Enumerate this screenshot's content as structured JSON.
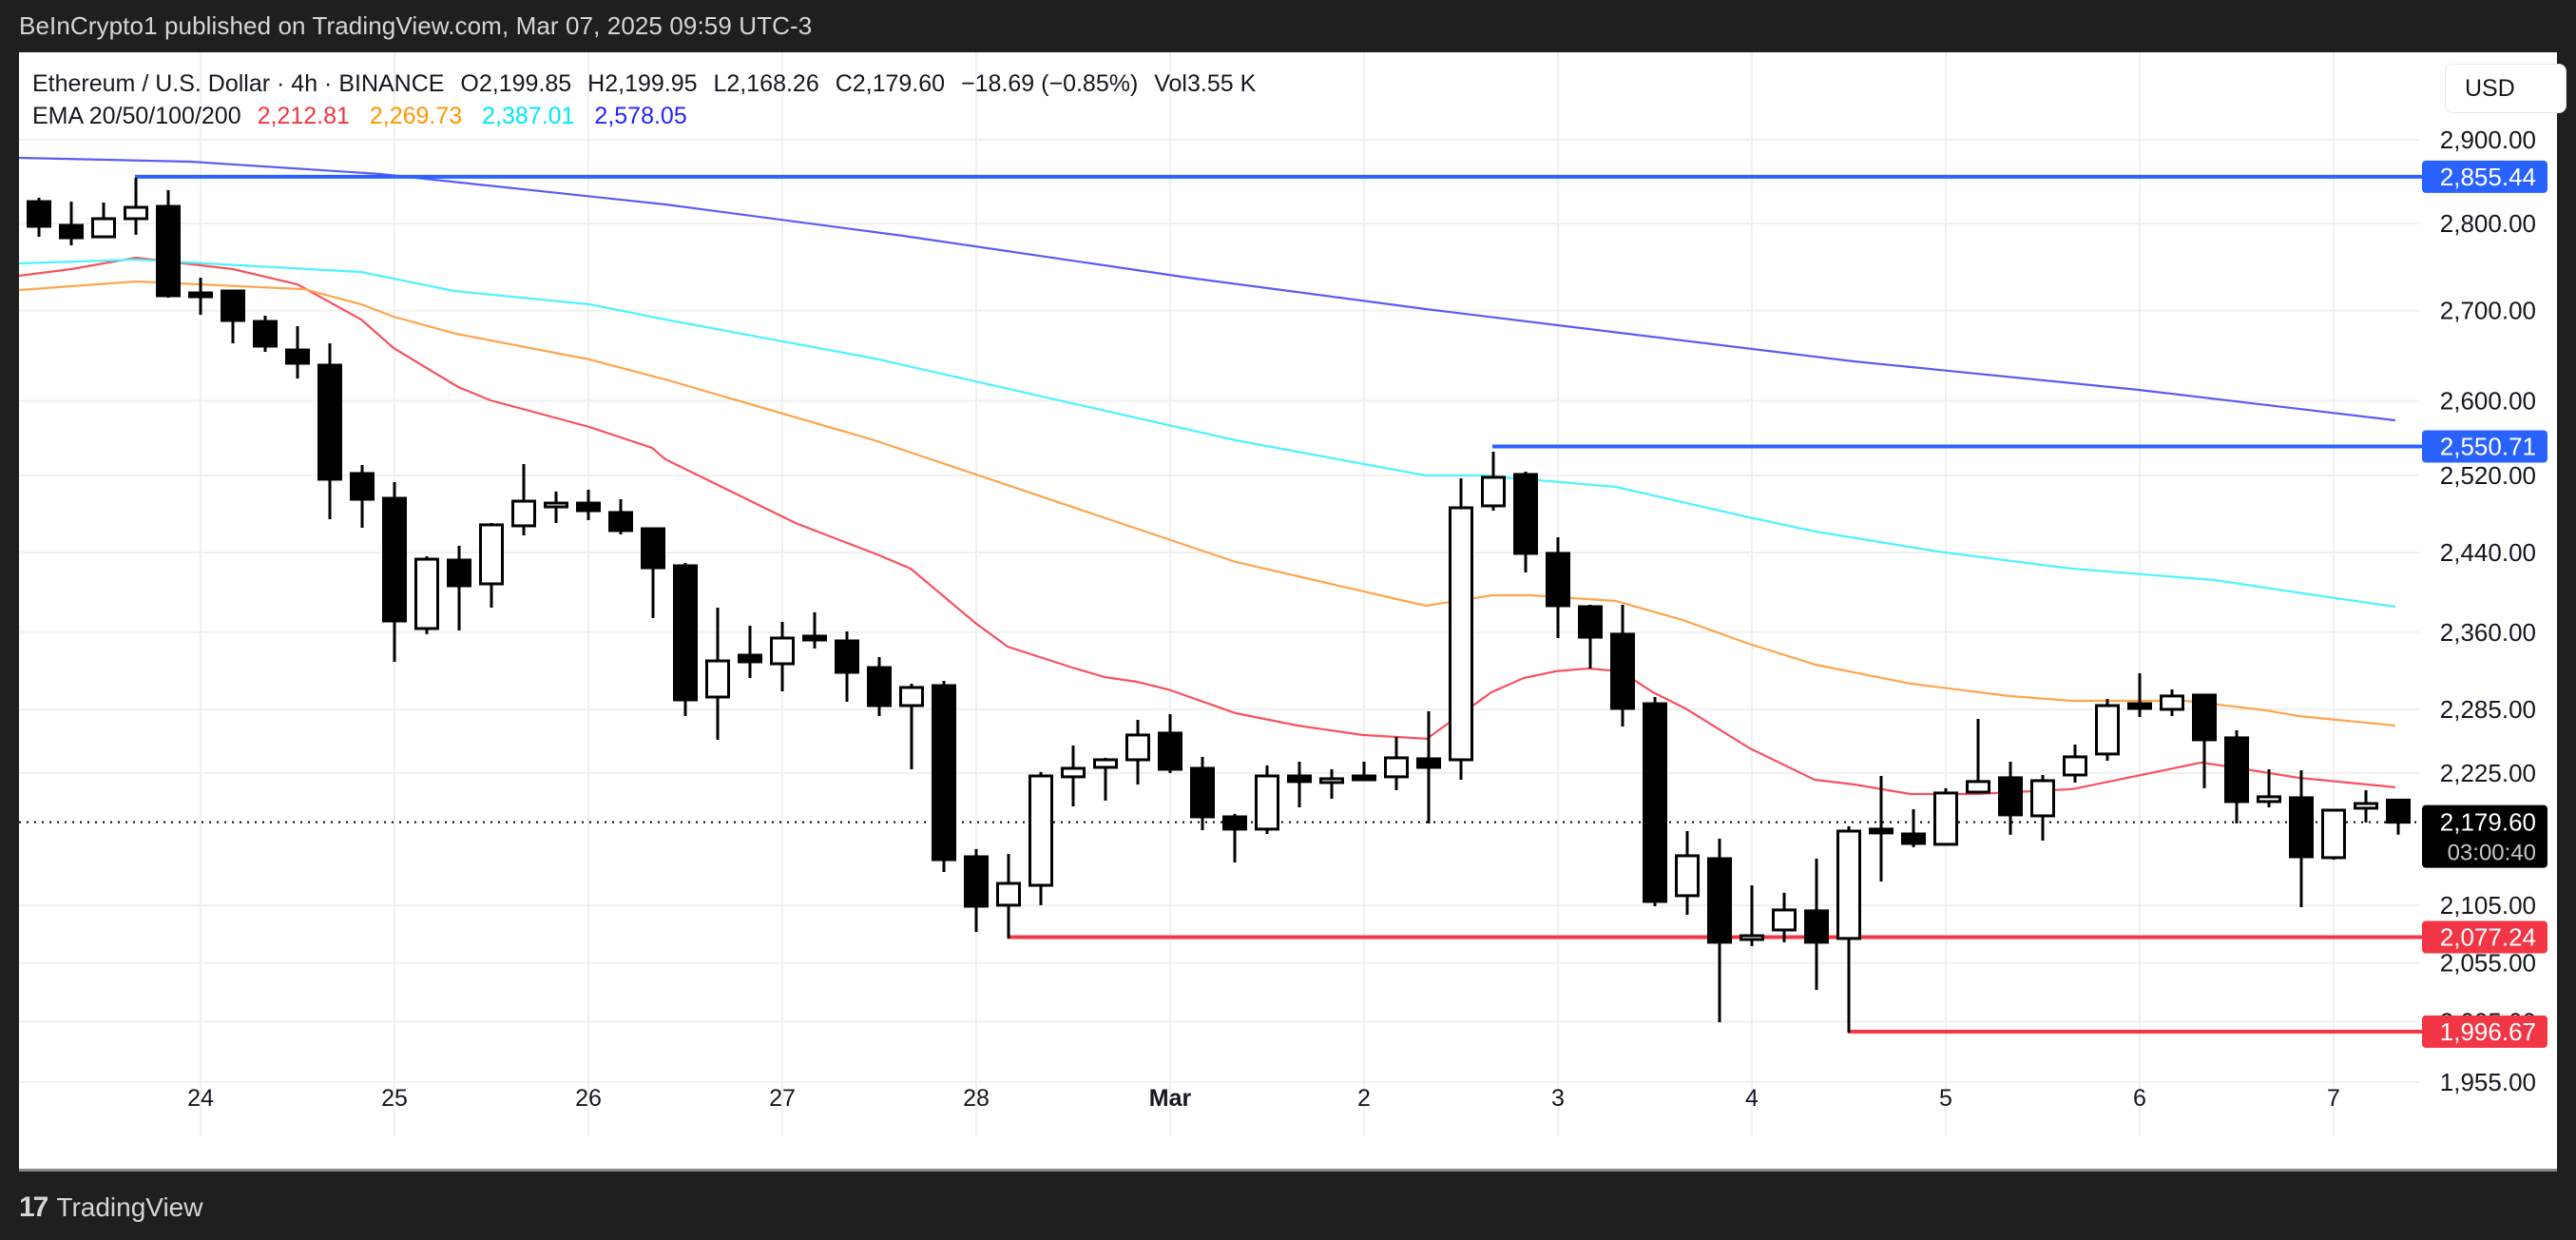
{
  "header": {
    "published": "BeInCrypto1 published on TradingView.com, Mar 07, 2025 09:59 UTC-3"
  },
  "legend": {
    "symbol": "Ethereum / U.S. Dollar · 4h · BINANCE",
    "open_label": "O",
    "open": "2,199.85",
    "high_label": "H",
    "high": "2,199.95",
    "low_label": "L",
    "low": "2,168.26",
    "close_label": "C",
    "close": "2,179.60",
    "change": "−18.69 (−0.85%)",
    "volume_label": "Vol",
    "volume": "3.55 K",
    "ema_label": "EMA 20/50/100/200",
    "ema20": "2,212.81",
    "ema50": "2,269.73",
    "ema100": "2,387.01",
    "ema200": "2,578.05"
  },
  "currency_button": "USD",
  "footer": {
    "brand": "TradingView",
    "logo": "17"
  },
  "colors": {
    "ema20": "#f23645",
    "ema50": "#ff9800",
    "ema100": "#00e5ff",
    "ema200": "#2323ff",
    "ema20_line": "#f7525f",
    "ema50_line": "#ffa54d",
    "ema100_line": "#4df3ff",
    "ema200_line": "#5b5bf5",
    "resistance": "#2962ff",
    "support": "#f23645",
    "candle": "#000000",
    "grid": "#f0f0f0"
  },
  "price_label": {
    "value": "2,179.60",
    "countdown": "03:00:40"
  },
  "chart_data": {
    "type": "candlestick",
    "title": "Ethereum / U.S. Dollar · 4h · BINANCE",
    "scale": "log",
    "ylim": [
      1930,
      2935
    ],
    "y_ticks": [
      2900,
      2800,
      2700,
      2600,
      2520,
      2440,
      2360,
      2285,
      2225,
      2105,
      2055,
      2005,
      1955
    ],
    "y_tick_labels": [
      "2,900.00",
      "2,800.00",
      "2,700.00",
      "2,600.00",
      "2,520.00",
      "2,440.00",
      "2,360.00",
      "2,285.00",
      "2,225.00",
      "2,105.00",
      "2,055.00",
      "2,005.00",
      "1,955.00"
    ],
    "x_ticks": [
      {
        "label": "24",
        "index": 5
      },
      {
        "label": "25",
        "index": 11
      },
      {
        "label": "26",
        "index": 17
      },
      {
        "label": "27",
        "index": 23
      },
      {
        "label": "28",
        "index": 29
      },
      {
        "label": "Mar",
        "index": 35
      },
      {
        "label": "2",
        "index": 41
      },
      {
        "label": "3",
        "index": 47
      },
      {
        "label": "4",
        "index": 53
      },
      {
        "label": "5",
        "index": 59
      },
      {
        "label": "6",
        "index": 65
      },
      {
        "label": "7",
        "index": 71
      }
    ],
    "candles": [
      [
        2825.9,
        2830.5,
        2784.6,
        2796.9
      ],
      [
        2798.0,
        2825.9,
        2774.7,
        2783.5
      ],
      [
        2784.6,
        2824.8,
        2784.6,
        2805.8
      ],
      [
        2805.8,
        2854.2,
        2786.9,
        2819.2
      ],
      [
        2820.3,
        2839.5,
        2714.6,
        2716.8
      ],
      [
        2720.0,
        2737.4,
        2695.2,
        2719.0
      ],
      [
        2722.2,
        2723.3,
        2663.2,
        2688.8
      ],
      [
        2687.7,
        2694.2,
        2653.7,
        2660.1
      ],
      [
        2655.8,
        2682.4,
        2624.3,
        2641.1
      ],
      [
        2639.0,
        2663.2,
        2474.3,
        2516.0
      ],
      [
        2522.0,
        2531.0,
        2465.4,
        2495.0
      ],
      [
        2496.0,
        2513.0,
        2330.9,
        2371.1
      ],
      [
        2363.6,
        2436.2,
        2358.0,
        2433.2
      ],
      [
        2432.3,
        2446.8,
        2361.7,
        2406.3
      ],
      [
        2408.2,
        2470.3,
        2384.4,
        2468.4
      ],
      [
        2467.4,
        2532.0,
        2457.6,
        2493.0
      ],
      [
        2490.1,
        2503.0,
        2470.3,
        2491.0
      ],
      [
        2491.0,
        2505.0,
        2473.3,
        2483.1
      ],
      [
        2481.2,
        2495.0,
        2458.6,
        2462.5
      ],
      [
        2464.4,
        2465.4,
        2374.0,
        2424.5
      ],
      [
        2426.5,
        2429.4,
        2278.6,
        2294.1
      ],
      [
        2296.8,
        2384.4,
        2256.1,
        2331.8
      ],
      [
        2337.4,
        2366.4,
        2315.2,
        2330.9
      ],
      [
        2329.0,
        2370.2,
        2302.3,
        2354.2
      ],
      [
        2356.1,
        2379.7,
        2343.9,
        2352.3
      ],
      [
        2351.4,
        2360.8,
        2292.3,
        2320.7
      ],
      [
        2325.3,
        2335.5,
        2278.6,
        2288.6
      ],
      [
        2288.6,
        2309.7,
        2228.4,
        2306.0
      ],
      [
        2307.8,
        2312.4,
        2134.7,
        2145.7
      ],
      [
        2148.3,
        2155.2,
        2081.8,
        2104.3
      ],
      [
        2105.2,
        2150.9,
        2076.1,
        2124.5
      ],
      [
        2122.8,
        2225.8,
        2105.2,
        2222.2
      ],
      [
        2221.4,
        2250.7,
        2194.1,
        2229.3
      ],
      [
        2230.2,
        2239.1,
        2199.4,
        2237.3
      ],
      [
        2237.3,
        2275.0,
        2214.3,
        2260.6
      ],
      [
        2262.4,
        2280.4,
        2224.9,
        2228.4
      ],
      [
        2229.3,
        2240.0,
        2172.4,
        2184.5
      ],
      [
        2184.5,
        2187.2,
        2143.2,
        2173.3
      ],
      [
        2173.3,
        2232.0,
        2168.9,
        2222.2
      ],
      [
        2222.2,
        2235.5,
        2193.2,
        2217.0
      ],
      [
        2217.0,
        2228.4,
        2201.1,
        2219.6
      ],
      [
        2222.2,
        2235.5,
        2219.6,
        2219.6
      ],
      [
        2221.4,
        2258.8,
        2209.0,
        2239.1
      ],
      [
        2238.2,
        2283.2,
        2178.5,
        2230.2
      ],
      [
        2237.3,
        2517.0,
        2218.7,
        2486.1
      ],
      [
        2488.1,
        2545.1,
        2483.1,
        2518.0
      ],
      [
        2521.0,
        2524.0,
        2419.7,
        2439.1
      ],
      [
        2439.1,
        2455.6,
        2354.2,
        2386.3
      ],
      [
        2385.3,
        2387.2,
        2324.4,
        2355.1
      ],
      [
        2358.0,
        2387.2,
        2268.7,
        2285.9
      ],
      [
        2290.4,
        2296.8,
        2104.3,
        2108.5
      ],
      [
        2113.6,
        2171.5,
        2096.8,
        2149.2
      ],
      [
        2146.6,
        2164.6,
        2004.6,
        2072.8
      ],
      [
        2075.2,
        2122.8,
        2069.5,
        2078.5
      ],
      [
        2083.5,
        2116.1,
        2072.8,
        2101.0
      ],
      [
        2100.2,
        2146.6,
        2031.9,
        2072.8
      ],
      [
        2076.1,
        2175.9,
        1995.9,
        2171.5
      ],
      [
        2173.3,
        2222.2,
        2126.2,
        2172.4
      ],
      [
        2168.9,
        2191.5,
        2156.9,
        2160.3
      ],
      [
        2159.5,
        2210.8,
        2158.6,
        2206.4
      ],
      [
        2207.2,
        2275.9,
        2207.2,
        2217.0
      ],
      [
        2220.5,
        2235.5,
        2168.1,
        2186.3
      ],
      [
        2185.4,
        2223.1,
        2162.9,
        2217.8
      ],
      [
        2223.1,
        2251.6,
        2216.1,
        2240.0
      ],
      [
        2242.7,
        2295.0,
        2236.4,
        2288.6
      ],
      [
        2290.4,
        2319.8,
        2277.7,
        2285.9
      ],
      [
        2285.0,
        2304.1,
        2278.6,
        2297.8
      ],
      [
        2298.7,
        2298.7,
        2210.8,
        2256.1
      ],
      [
        2257.9,
        2265.1,
        2178.5,
        2198.5
      ],
      [
        2198.5,
        2228.4,
        2193.2,
        2202.9
      ],
      [
        2202.0,
        2227.5,
        2103.5,
        2148.3
      ],
      [
        2147.5,
        2191.5,
        2145.7,
        2190.6
      ],
      [
        2192.4,
        2209.0,
        2179.3,
        2196.7
      ],
      [
        2199.85,
        2199.95,
        2168.26,
        2179.6
      ]
    ],
    "series": [
      {
        "name": "EMA 20",
        "color_key": "ema20_line",
        "points": [
          [
            -0.62,
            2739.6
          ],
          [
            1.0,
            2747.2
          ],
          [
            3.0,
            2760.4
          ],
          [
            6.0,
            2747.2
          ],
          [
            8.0,
            2729.8
          ],
          [
            9.97,
            2689.9
          ],
          [
            10.97,
            2658.0
          ],
          [
            12.97,
            2615.0
          ],
          [
            13.97,
            2600.4
          ],
          [
            17.03,
            2571.6
          ],
          [
            18.97,
            2549.2
          ],
          [
            19.38,
            2537.1
          ],
          [
            23.41,
            2470.3
          ],
          [
            26.0,
            2437.1
          ],
          [
            26.97,
            2423.6
          ],
          [
            28.97,
            2369.2
          ],
          [
            29.97,
            2345.8
          ],
          [
            31.97,
            2325.3
          ],
          [
            32.97,
            2316.1
          ],
          [
            33.97,
            2311.5
          ],
          [
            34.94,
            2304.1
          ],
          [
            37.03,
            2281.3
          ],
          [
            38.94,
            2269.6
          ],
          [
            40.94,
            2260.6
          ],
          [
            42.94,
            2257.0
          ],
          [
            44.94,
            2301.4
          ],
          [
            45.94,
            2315.2
          ],
          [
            46.94,
            2321.7
          ],
          [
            47.94,
            2324.4
          ],
          [
            48.94,
            2321.7
          ],
          [
            49.94,
            2301.4
          ],
          [
            50.94,
            2285.9
          ],
          [
            52.94,
            2248.0
          ],
          [
            54.94,
            2218.7
          ],
          [
            56.15,
            2214.3
          ],
          [
            57.91,
            2205.5
          ],
          [
            59.94,
            2205.5
          ],
          [
            62.91,
            2209.9
          ],
          [
            66.91,
            2234.7
          ],
          [
            67.91,
            2230.2
          ],
          [
            69.91,
            2220.5
          ],
          [
            72.91,
            2211.7
          ]
        ]
      },
      {
        "name": "EMA 50",
        "color_key": "ema50_line",
        "points": [
          [
            -0.62,
            2723.3
          ],
          [
            3.0,
            2733.0
          ],
          [
            8.21,
            2724.3
          ],
          [
            9.97,
            2707.1
          ],
          [
            10.97,
            2693.1
          ],
          [
            12.91,
            2673.9
          ],
          [
            17.03,
            2645.3
          ],
          [
            19.38,
            2623.3
          ],
          [
            25.85,
            2557.3
          ],
          [
            37.03,
            2430.3
          ],
          [
            42.91,
            2386.3
          ],
          [
            44.97,
            2396.7
          ],
          [
            46.15,
            2396.7
          ],
          [
            48.79,
            2391.0
          ],
          [
            50.85,
            2372.1
          ],
          [
            52.91,
            2348.6
          ],
          [
            54.97,
            2328.1
          ],
          [
            57.91,
            2309.7
          ],
          [
            60.94,
            2297.8
          ],
          [
            62.91,
            2293.2
          ],
          [
            66.44,
            2293.2
          ],
          [
            68.91,
            2284.1
          ],
          [
            69.91,
            2278.6
          ],
          [
            72.91,
            2269.6
          ]
        ]
      },
      {
        "name": "EMA 100",
        "color_key": "ema100_line",
        "points": [
          [
            -0.62,
            2753.8
          ],
          [
            3.0,
            2758.2
          ],
          [
            9.97,
            2744.0
          ],
          [
            12.85,
            2722.2
          ],
          [
            17.03,
            2707.1
          ],
          [
            19.38,
            2689.9
          ],
          [
            25.85,
            2646.4
          ],
          [
            37.03,
            2557.3
          ],
          [
            42.91,
            2520.0
          ],
          [
            44.68,
            2520.0
          ],
          [
            48.79,
            2508.0
          ],
          [
            52.91,
            2476.2
          ],
          [
            54.97,
            2461.5
          ],
          [
            58.94,
            2440.1
          ],
          [
            62.91,
            2423.6
          ],
          [
            67.32,
            2412.0
          ],
          [
            70.85,
            2394.8
          ],
          [
            72.91,
            2385.3
          ]
        ]
      },
      {
        "name": "EMA 200",
        "color_key": "ema200_line",
        "points": [
          [
            -0.62,
            2878.2
          ],
          [
            4.68,
            2873.6
          ],
          [
            10.56,
            2858.7
          ],
          [
            19.38,
            2822.6
          ],
          [
            26.74,
            2785.8
          ],
          [
            35.56,
            2737.4
          ],
          [
            42.91,
            2701.7
          ],
          [
            56.15,
            2643.2
          ],
          [
            64.97,
            2611.8
          ],
          [
            72.91,
            2578.8
          ]
        ]
      }
    ],
    "levels": [
      {
        "value": 2855.44,
        "label": "2,855.44",
        "start_index": 3,
        "color_key": "resistance"
      },
      {
        "value": 2550.71,
        "label": "2,550.71",
        "start_index": 45,
        "color_key": "resistance"
      },
      {
        "value": 2077.24,
        "label": "2,077.24",
        "start_index": 30,
        "color_key": "support"
      },
      {
        "value": 1996.67,
        "label": "1,996.67",
        "start_index": 56,
        "color_key": "support"
      }
    ],
    "last_price": 2179.6,
    "xlabel": "",
    "ylabel": "",
    "grid": true
  }
}
